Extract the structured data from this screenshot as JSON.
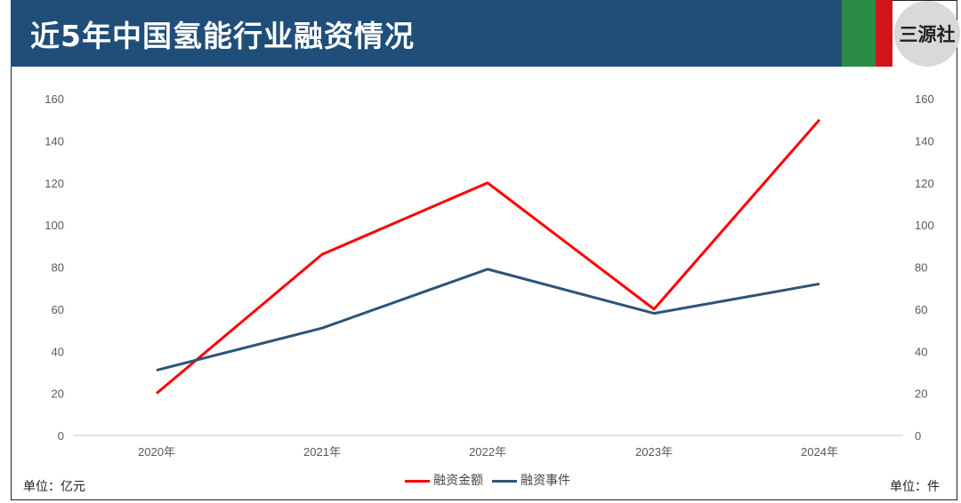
{
  "title": "近5年中国氢能行业融资情况",
  "logo": "三源社",
  "unit_left": "单位：亿元",
  "unit_right": "单位：件",
  "colors": {
    "header": "#1f4e79",
    "green": "#2a8c44",
    "red": "#d0161b"
  },
  "chart_data": {
    "type": "line",
    "categories": [
      "2020年",
      "2021年",
      "2022年",
      "2023年",
      "2024年"
    ],
    "series": [
      {
        "name": "融资金额",
        "axis": "left",
        "color": "#ff0000",
        "values": [
          20,
          86,
          120,
          60,
          150
        ]
      },
      {
        "name": "融资事件",
        "axis": "right",
        "color": "#2e5477",
        "values": [
          31,
          51,
          79,
          58,
          72
        ]
      }
    ],
    "ylim": [
      0,
      160
    ],
    "yticks": [
      0,
      20,
      40,
      60,
      80,
      100,
      120,
      140,
      160
    ],
    "y2lim": [
      0,
      160
    ],
    "grid": false,
    "legend": "bottom"
  }
}
